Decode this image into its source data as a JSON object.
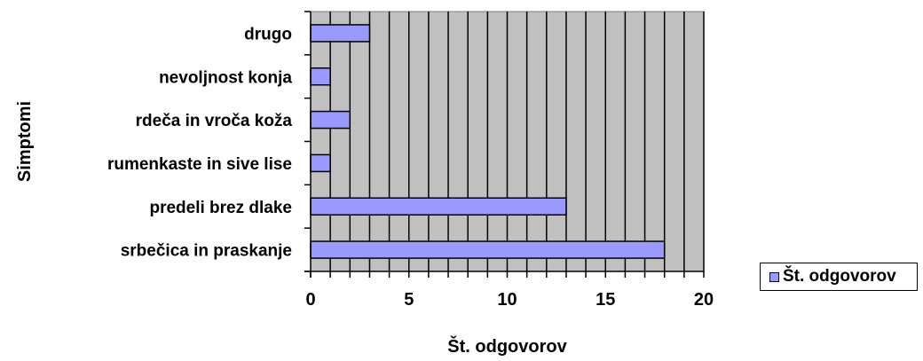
{
  "chart_data": {
    "type": "bar",
    "orientation": "horizontal",
    "categories": [
      "drugo",
      "nevoljnost konja",
      "rdeča in vroča koža",
      "rumenkaste in sive lise",
      "predeli brez dlake",
      "srbečica in praskanje"
    ],
    "series": [
      {
        "name": "Št. odgovorov",
        "values": [
          3,
          1,
          2,
          1,
          13,
          18
        ]
      }
    ],
    "xlabel": "Št. odgovorov",
    "ylabel": "Simptomi",
    "xlim": [
      0,
      20
    ],
    "x_ticks": [
      0,
      5,
      10,
      15,
      20
    ],
    "grid": "vertical gridlines every 1 unit",
    "legend_position": "right",
    "colors": {
      "bar_fill": "#9999ff",
      "plot_background": "#c0c0c0",
      "gridline": "#000000"
    }
  }
}
